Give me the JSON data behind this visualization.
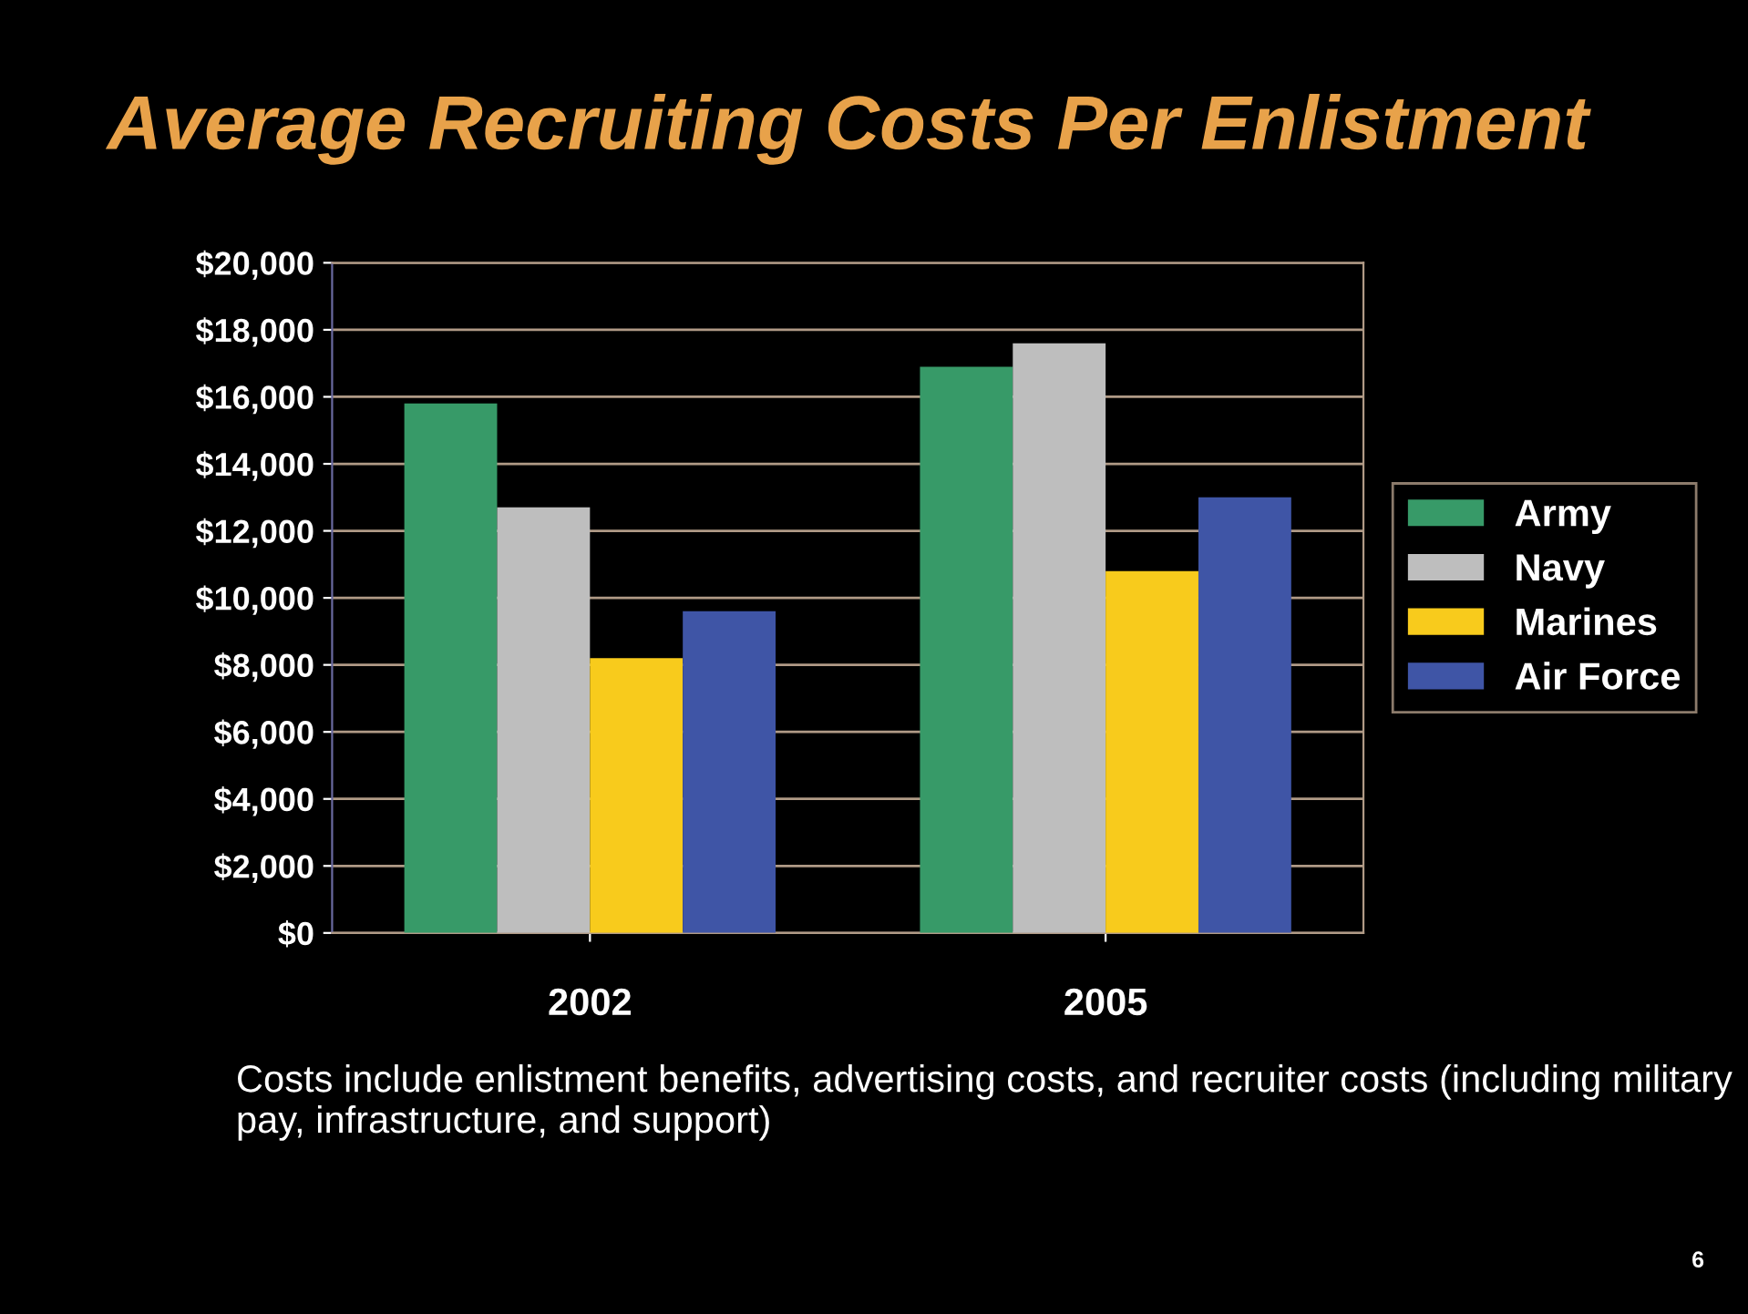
{
  "chart_data": {
    "type": "bar",
    "title": "Average Recruiting Costs Per Enlistment",
    "categories": [
      "2002",
      "2005"
    ],
    "series": [
      {
        "name": "Army",
        "color": "#379a68",
        "values": [
          15800,
          16900
        ]
      },
      {
        "name": "Navy",
        "color": "#bebebe",
        "values": [
          12700,
          17600
        ]
      },
      {
        "name": "Marines",
        "color": "#f8cb1c",
        "values": [
          8200,
          10800
        ]
      },
      {
        "name": "Air Force",
        "color": "#3f55a6",
        "values": [
          9600,
          13000
        ]
      }
    ],
    "ylim": [
      0,
      20000
    ],
    "yticks": [
      {
        "value": 0,
        "label": "$0"
      },
      {
        "value": 2000,
        "label": "$2,000"
      },
      {
        "value": 4000,
        "label": "$4,000"
      },
      {
        "value": 6000,
        "label": "$6,000"
      },
      {
        "value": 8000,
        "label": "$8,000"
      },
      {
        "value": 10000,
        "label": "$10,000"
      },
      {
        "value": 12000,
        "label": "$12,000"
      },
      {
        "value": 14000,
        "label": "$14,000"
      },
      {
        "value": 16000,
        "label": "$16,000"
      },
      {
        "value": 18000,
        "label": "$18,000"
      },
      {
        "value": 20000,
        "label": "$20,000"
      }
    ],
    "grid": "y",
    "legend": "right",
    "annotations": [
      "Costs include enlistment benefits, advertising costs, and recruiter costs (including military pay, infrastructure, and support)",
      "6"
    ]
  }
}
